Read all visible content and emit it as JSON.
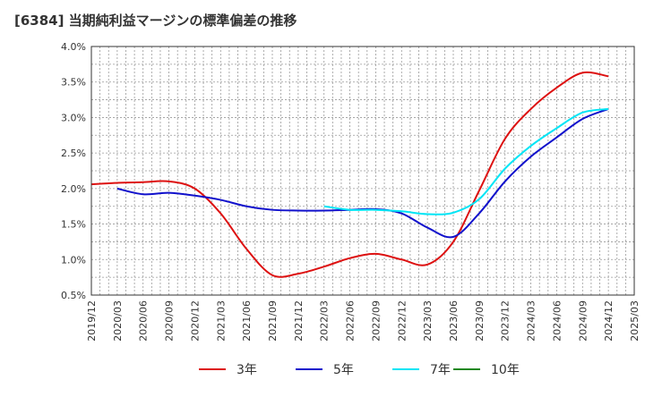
{
  "chart_data": {
    "type": "line",
    "title": "[6384]  当期純利益マージンの標準偏差の推移",
    "xlabel": "",
    "ylabel": "",
    "ylim": [
      0.5,
      4.0
    ],
    "yticks": [
      0.5,
      1.0,
      1.5,
      2.0,
      2.5,
      3.0,
      3.5,
      4.0
    ],
    "ytick_labels": [
      "0.5%",
      "1.0%",
      "1.5%",
      "2.0%",
      "2.5%",
      "3.0%",
      "3.5%",
      "4.0%"
    ],
    "xtick_labels": [
      "2019/12",
      "2020/03",
      "2020/06",
      "2020/09",
      "2020/12",
      "2021/03",
      "2021/06",
      "2021/09",
      "2021/12",
      "2022/03",
      "2022/06",
      "2022/09",
      "2022/12",
      "2023/03",
      "2023/06",
      "2023/09",
      "2023/12",
      "2024/03",
      "2024/06",
      "2024/09",
      "2024/12",
      "2025/03"
    ],
    "grid": true,
    "legend_position": "bottom",
    "series": [
      {
        "name": "3年",
        "color": "#dd1111",
        "points": [
          [
            "2019/12",
            2.06
          ],
          [
            "2020/03",
            2.08
          ],
          [
            "2020/06",
            2.09
          ],
          [
            "2020/09",
            2.1
          ],
          [
            "2020/12",
            2.0
          ],
          [
            "2021/03",
            1.65
          ],
          [
            "2021/06",
            1.15
          ],
          [
            "2021/09",
            0.78
          ],
          [
            "2021/12",
            0.8
          ],
          [
            "2022/03",
            0.9
          ],
          [
            "2022/06",
            1.02
          ],
          [
            "2022/09",
            1.08
          ],
          [
            "2022/12",
            1.0
          ],
          [
            "2023/03",
            0.93
          ],
          [
            "2023/06",
            1.25
          ],
          [
            "2023/09",
            1.97
          ],
          [
            "2023/12",
            2.7
          ],
          [
            "2024/03",
            3.12
          ],
          [
            "2024/06",
            3.42
          ],
          [
            "2024/09",
            3.63
          ],
          [
            "2024/12",
            3.58
          ]
        ]
      },
      {
        "name": "5年",
        "color": "#1111cc",
        "points": [
          [
            "2020/03",
            2.0
          ],
          [
            "2020/06",
            1.92
          ],
          [
            "2020/09",
            1.94
          ],
          [
            "2020/12",
            1.9
          ],
          [
            "2021/03",
            1.84
          ],
          [
            "2021/06",
            1.75
          ],
          [
            "2021/09",
            1.7
          ],
          [
            "2021/12",
            1.69
          ],
          [
            "2022/03",
            1.69
          ],
          [
            "2022/06",
            1.7
          ],
          [
            "2022/09",
            1.71
          ],
          [
            "2022/12",
            1.65
          ],
          [
            "2023/03",
            1.45
          ],
          [
            "2023/06",
            1.32
          ],
          [
            "2023/09",
            1.65
          ],
          [
            "2023/12",
            2.1
          ],
          [
            "2024/03",
            2.45
          ],
          [
            "2024/06",
            2.72
          ],
          [
            "2024/09",
            2.98
          ],
          [
            "2024/12",
            3.12
          ]
        ]
      },
      {
        "name": "7年",
        "color": "#00e5f5",
        "points": [
          [
            "2022/03",
            1.75
          ],
          [
            "2022/06",
            1.7
          ],
          [
            "2022/09",
            1.7
          ],
          [
            "2022/12",
            1.68
          ],
          [
            "2023/03",
            1.64
          ],
          [
            "2023/06",
            1.66
          ],
          [
            "2023/09",
            1.85
          ],
          [
            "2023/12",
            2.28
          ],
          [
            "2024/03",
            2.6
          ],
          [
            "2024/06",
            2.85
          ],
          [
            "2024/09",
            3.07
          ],
          [
            "2024/12",
            3.12
          ]
        ]
      },
      {
        "name": "10年",
        "color": "#228822",
        "points": []
      }
    ]
  }
}
